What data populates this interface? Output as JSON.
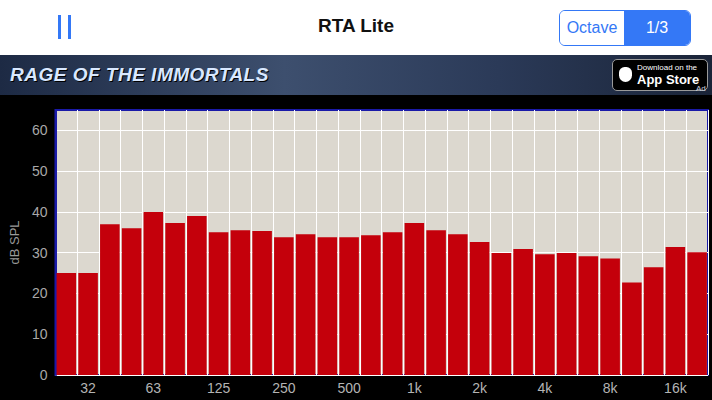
{
  "app": {
    "title": "RTA Lite",
    "segments": [
      "Octave",
      "1/3"
    ],
    "selected": "1/3"
  },
  "ad": {
    "headline": "RAGE OF THE IMMORTALS",
    "badge": [
      "Download on the",
      "App Store"
    ],
    "label": "Ad"
  },
  "chart_data": {
    "type": "bar",
    "y_label": "dB SPL",
    "categories": [
      null,
      "32",
      null,
      null,
      "63",
      null,
      null,
      "125",
      null,
      null,
      "250",
      null,
      null,
      "500",
      null,
      null,
      "1k",
      null,
      null,
      "2k",
      null,
      null,
      "4k",
      null,
      null,
      "8k",
      null,
      null,
      "16k",
      null
    ],
    "values": [
      25,
      25,
      37,
      36,
      40,
      37.3,
      39,
      35,
      35.5,
      35.3,
      33.8,
      34.5,
      33.8,
      33.8,
      34.3,
      35,
      37.3,
      35.5,
      34.5,
      32.6,
      29.9,
      30.9,
      29.6,
      29.9,
      29.1,
      28.6,
      22.7,
      26.4,
      31.4,
      30.1
    ],
    "color": "#c4000b",
    "ylim": [
      0,
      65
    ],
    "yticks": [
      0,
      10,
      20,
      30,
      40,
      50,
      60
    ],
    "grid": true
  }
}
